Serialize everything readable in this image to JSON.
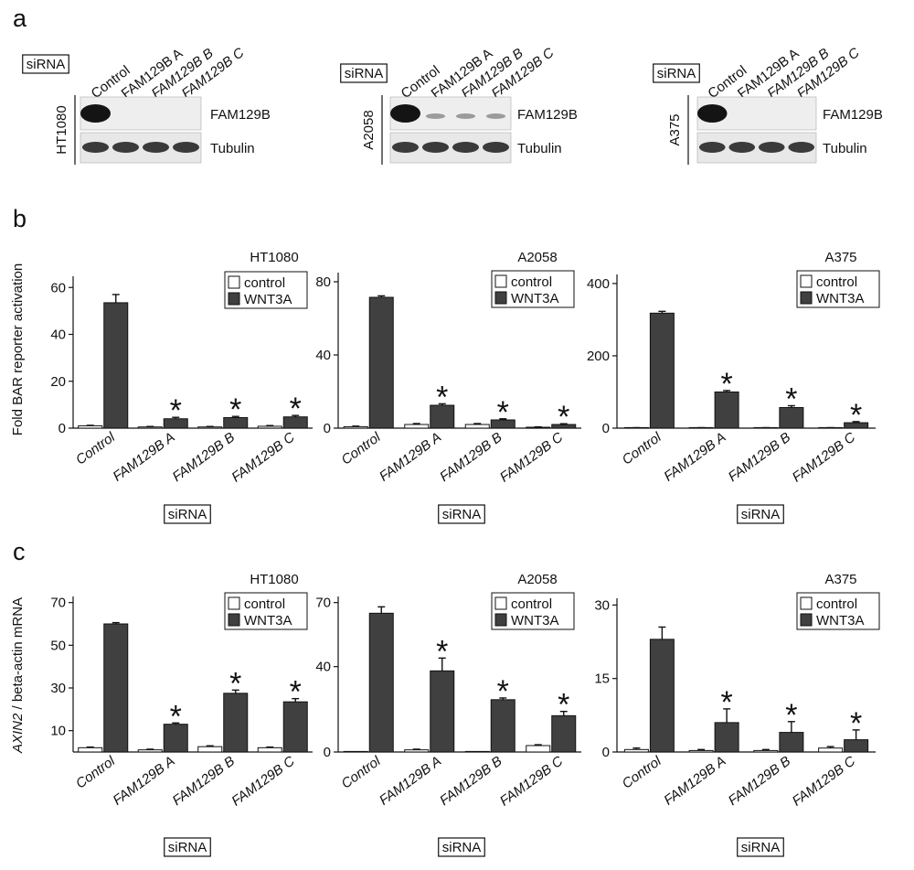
{
  "panel_letters": [
    "a",
    "b",
    "c"
  ],
  "siRNA_label": "siRNA",
  "blots": [
    {
      "cell_line": "HT1080",
      "lanes": [
        "Control",
        "FAM129B A",
        "FAM129B B",
        "FAM129B C"
      ],
      "rows": [
        "FAM129B",
        "Tubulin"
      ]
    },
    {
      "cell_line": "A2058",
      "lanes": [
        "Control",
        "FAM129B A",
        "FAM129B B",
        "FAM129B C"
      ],
      "rows": [
        "FAM129B",
        "Tubulin"
      ]
    },
    {
      "cell_line": "A375",
      "lanes": [
        "Control",
        "FAM129B A",
        "FAM129B B",
        "FAM129B C"
      ],
      "rows": [
        "FAM129B",
        "Tubulin"
      ]
    }
  ],
  "row_b_ylabel": "Fold BAR reporter activation",
  "row_c_ylabel_italic": "AXIN2",
  "row_c_ylabel_rest": " / beta-actin mRNA",
  "colors": {
    "control": "#ffffff",
    "wnt3a": "#404040"
  },
  "chart_data": [
    {
      "type": "bar",
      "panel": "b",
      "title": "HT1080",
      "categories": [
        "Control",
        "FAM129B A",
        "FAM129B B",
        "FAM129B C"
      ],
      "series": [
        {
          "name": "control",
          "values": [
            1.0,
            0.5,
            0.5,
            0.8
          ],
          "errors": [
            0.2,
            0.2,
            0.2,
            0.3
          ]
        },
        {
          "name": "WNT3A",
          "values": [
            53.5,
            4.0,
            4.5,
            4.8
          ],
          "errors": [
            3.5,
            0.6,
            0.5,
            0.6
          ]
        }
      ],
      "significant": [
        false,
        true,
        true,
        true
      ],
      "ylim": [
        0,
        64
      ],
      "yticks": [
        0,
        20,
        40,
        60
      ]
    },
    {
      "type": "bar",
      "panel": "b",
      "title": "A2058",
      "categories": [
        "Control",
        "FAM129B A",
        "FAM129B B",
        "FAM129B C"
      ],
      "series": [
        {
          "name": "control",
          "values": [
            0.8,
            2.0,
            2.0,
            0.5
          ],
          "errors": [
            0.3,
            0.5,
            0.5,
            0.2
          ]
        },
        {
          "name": "WNT3A",
          "values": [
            71.5,
            12.5,
            4.5,
            2.0
          ],
          "errors": [
            0.8,
            0.8,
            0.6,
            0.4
          ]
        }
      ],
      "significant": [
        false,
        true,
        true,
        true
      ],
      "ylim": [
        0,
        84
      ],
      "yticks": [
        0,
        40,
        80
      ]
    },
    {
      "type": "bar",
      "panel": "b",
      "title": "A375",
      "categories": [
        "Control",
        "FAM129B A",
        "FAM129B B",
        "FAM129B C"
      ],
      "series": [
        {
          "name": "control",
          "values": [
            1.0,
            1.0,
            1.0,
            1.0
          ],
          "errors": [
            0.3,
            0.3,
            0.3,
            0.3
          ]
        },
        {
          "name": "WNT3A",
          "values": [
            318,
            100,
            57,
            15
          ],
          "errors": [
            5,
            4,
            5,
            3
          ]
        }
      ],
      "significant": [
        false,
        true,
        true,
        true
      ],
      "ylim": [
        0,
        420
      ],
      "yticks": [
        0,
        200,
        400
      ]
    },
    {
      "type": "bar",
      "panel": "c",
      "title": "HT1080",
      "categories": [
        "Control",
        "FAM129B A",
        "FAM129B B",
        "FAM129B C"
      ],
      "series": [
        {
          "name": "control",
          "values": [
            2.0,
            1.0,
            2.5,
            2.0
          ],
          "errors": [
            0.3,
            0.3,
            0.4,
            0.3
          ]
        },
        {
          "name": "WNT3A",
          "values": [
            60.0,
            13.0,
            27.5,
            23.5
          ],
          "errors": [
            0.6,
            0.6,
            1.5,
            1.5
          ]
        }
      ],
      "significant": [
        false,
        true,
        true,
        true
      ],
      "ylim": [
        0,
        72
      ],
      "yticks": [
        10,
        30,
        50,
        70
      ]
    },
    {
      "type": "bar",
      "panel": "c",
      "title": "A2058",
      "categories": [
        "Control",
        "FAM129B A",
        "FAM129B B",
        "FAM129B C"
      ],
      "series": [
        {
          "name": "control",
          "values": [
            0.0,
            1.0,
            0.0,
            3.0
          ],
          "errors": [
            0.0,
            0.3,
            0.0,
            0.4
          ]
        },
        {
          "name": "WNT3A",
          "values": [
            65.0,
            38.0,
            24.5,
            17.0
          ],
          "errors": [
            3.0,
            6.0,
            0.8,
            2.0
          ]
        }
      ],
      "significant": [
        false,
        true,
        true,
        true
      ],
      "ylim": [
        0,
        72
      ],
      "yticks": [
        0,
        40,
        70
      ]
    },
    {
      "type": "bar",
      "panel": "c",
      "title": "A375",
      "categories": [
        "Control",
        "FAM129B A",
        "FAM129B B",
        "FAM129B C"
      ],
      "series": [
        {
          "name": "control",
          "values": [
            0.5,
            0.3,
            0.3,
            0.8
          ],
          "errors": [
            0.3,
            0.2,
            0.2,
            0.3
          ]
        },
        {
          "name": "WNT3A",
          "values": [
            23.0,
            6.0,
            4.0,
            2.5
          ],
          "errors": [
            2.5,
            2.8,
            2.2,
            2.0
          ]
        }
      ],
      "significant": [
        false,
        true,
        true,
        true
      ],
      "ylim": [
        0,
        31
      ],
      "yticks": [
        0,
        15,
        30
      ]
    }
  ]
}
